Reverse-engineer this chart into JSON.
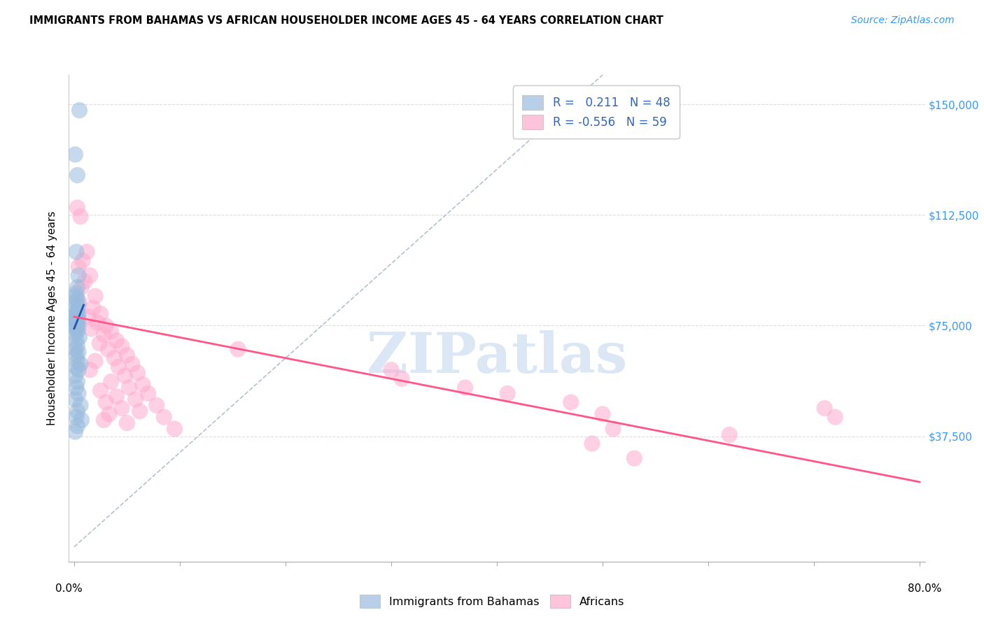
{
  "title": "IMMIGRANTS FROM BAHAMAS VS AFRICAN HOUSEHOLDER INCOME AGES 45 - 64 YEARS CORRELATION CHART",
  "source": "Source: ZipAtlas.com",
  "ylabel": "Householder Income Ages 45 - 64 years",
  "ytick_values": [
    0,
    37500,
    75000,
    112500,
    150000
  ],
  "ytick_labels_right": [
    "$37,500",
    "$75,000",
    "$112,500",
    "$150,000"
  ],
  "ymin": 0,
  "ymax": 160000,
  "xmin": 0.0,
  "xmax": 0.8,
  "r_bahamas": 0.211,
  "n_bahamas": 48,
  "r_african": -0.556,
  "n_african": 59,
  "watermark": "ZIPatlas",
  "blue_color": "#99BBDD",
  "pink_color": "#FFAACC",
  "blue_line_color": "#2255AA",
  "pink_line_color": "#FF5588",
  "diag_color": "#AABBCC",
  "grid_color": "#DDDDDD",
  "blue_scatter": [
    [
      0.001,
      133000
    ],
    [
      0.005,
      148000
    ],
    [
      0.003,
      126000
    ],
    [
      0.002,
      100000
    ],
    [
      0.004,
      92000
    ],
    [
      0.003,
      88000
    ],
    [
      0.002,
      86000
    ],
    [
      0.001,
      85000
    ],
    [
      0.003,
      84000
    ],
    [
      0.002,
      83000
    ],
    [
      0.004,
      82000
    ],
    [
      0.001,
      81000
    ],
    [
      0.003,
      80000
    ],
    [
      0.002,
      79500
    ],
    [
      0.004,
      79000
    ],
    [
      0.001,
      78500
    ],
    [
      0.003,
      78000
    ],
    [
      0.002,
      77500
    ],
    [
      0.004,
      77000
    ],
    [
      0.001,
      76500
    ],
    [
      0.002,
      76000
    ],
    [
      0.003,
      75500
    ],
    [
      0.001,
      75000
    ],
    [
      0.004,
      74500
    ],
    [
      0.002,
      74000
    ],
    [
      0.003,
      73000
    ],
    [
      0.001,
      72000
    ],
    [
      0.005,
      71000
    ],
    [
      0.002,
      70000
    ],
    [
      0.003,
      68000
    ],
    [
      0.001,
      67000
    ],
    [
      0.004,
      66000
    ],
    [
      0.002,
      65000
    ],
    [
      0.003,
      63000
    ],
    [
      0.006,
      62000
    ],
    [
      0.002,
      61000
    ],
    [
      0.004,
      60000
    ],
    [
      0.001,
      58000
    ],
    [
      0.003,
      56000
    ],
    [
      0.002,
      54000
    ],
    [
      0.004,
      52000
    ],
    [
      0.001,
      50000
    ],
    [
      0.006,
      48000
    ],
    [
      0.003,
      46000
    ],
    [
      0.002,
      44000
    ],
    [
      0.007,
      43000
    ],
    [
      0.003,
      41000
    ],
    [
      0.001,
      39000
    ]
  ],
  "pink_scatter": [
    [
      0.003,
      115000
    ],
    [
      0.006,
      112000
    ],
    [
      0.012,
      100000
    ],
    [
      0.008,
      97000
    ],
    [
      0.004,
      95000
    ],
    [
      0.015,
      92000
    ],
    [
      0.01,
      90000
    ],
    [
      0.007,
      88000
    ],
    [
      0.02,
      85000
    ],
    [
      0.005,
      83000
    ],
    [
      0.018,
      81000
    ],
    [
      0.025,
      79000
    ],
    [
      0.013,
      78000
    ],
    [
      0.022,
      76000
    ],
    [
      0.03,
      75000
    ],
    [
      0.016,
      74000
    ],
    [
      0.035,
      73000
    ],
    [
      0.028,
      72000
    ],
    [
      0.04,
      70000
    ],
    [
      0.024,
      69000
    ],
    [
      0.045,
      68000
    ],
    [
      0.032,
      67000
    ],
    [
      0.05,
      65000
    ],
    [
      0.038,
      64000
    ],
    [
      0.02,
      63000
    ],
    [
      0.055,
      62000
    ],
    [
      0.042,
      61000
    ],
    [
      0.015,
      60000
    ],
    [
      0.06,
      59000
    ],
    [
      0.048,
      58000
    ],
    [
      0.035,
      56000
    ],
    [
      0.065,
      55000
    ],
    [
      0.052,
      54000
    ],
    [
      0.025,
      53000
    ],
    [
      0.07,
      52000
    ],
    [
      0.04,
      51000
    ],
    [
      0.058,
      50000
    ],
    [
      0.03,
      49000
    ],
    [
      0.078,
      48000
    ],
    [
      0.045,
      47000
    ],
    [
      0.062,
      46000
    ],
    [
      0.033,
      45000
    ],
    [
      0.085,
      44000
    ],
    [
      0.028,
      43000
    ],
    [
      0.05,
      42000
    ],
    [
      0.095,
      40000
    ],
    [
      0.155,
      67000
    ],
    [
      0.3,
      60000
    ],
    [
      0.31,
      57000
    ],
    [
      0.37,
      54000
    ],
    [
      0.41,
      52000
    ],
    [
      0.47,
      49000
    ],
    [
      0.5,
      45000
    ],
    [
      0.51,
      40000
    ],
    [
      0.49,
      35000
    ],
    [
      0.53,
      30000
    ],
    [
      0.62,
      38000
    ],
    [
      0.71,
      47000
    ],
    [
      0.72,
      44000
    ]
  ]
}
